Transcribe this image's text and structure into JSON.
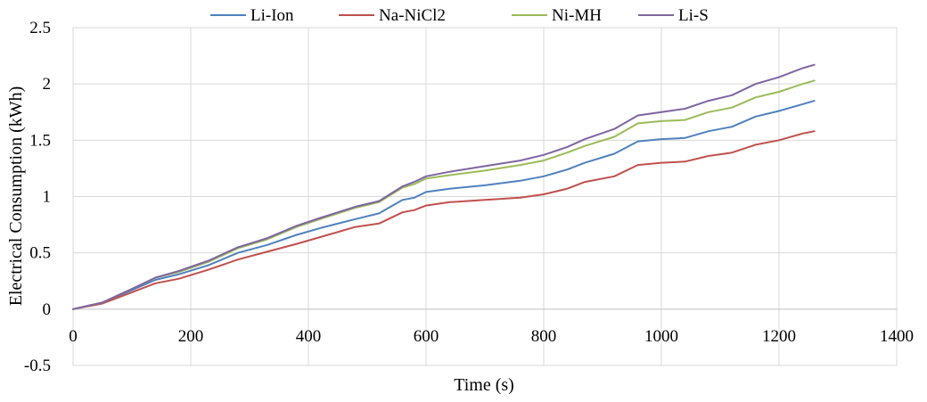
{
  "chart_data": {
    "type": "line",
    "title": "",
    "xlabel": "Time (s)",
    "ylabel": "Electrical Consumption (kWh)",
    "xlim": [
      0,
      1400
    ],
    "ylim": [
      -0.5,
      2.5
    ],
    "x_ticks": [
      0,
      200,
      400,
      600,
      800,
      1000,
      1200,
      1400
    ],
    "y_ticks": [
      -0.5,
      0,
      0.5,
      1,
      1.5,
      2,
      2.5
    ],
    "x_tick_labels": [
      "0",
      "200",
      "400",
      "600",
      "800",
      "1000",
      "1200",
      "1400"
    ],
    "y_tick_labels": [
      "-0.5",
      "0",
      "0.5",
      "1",
      "1.5",
      "2",
      "2.5"
    ],
    "grid": "vertical and horizontal",
    "legend_position": "top",
    "series": [
      {
        "name": "Li-Ion",
        "color": "#4F81BD",
        "points": [
          [
            0,
            0
          ],
          [
            50,
            0.06
          ],
          [
            100,
            0.17
          ],
          [
            140,
            0.26
          ],
          [
            180,
            0.31
          ],
          [
            230,
            0.39
          ],
          [
            280,
            0.5
          ],
          [
            330,
            0.57
          ],
          [
            380,
            0.66
          ],
          [
            420,
            0.72
          ],
          [
            480,
            0.8
          ],
          [
            520,
            0.85
          ],
          [
            560,
            0.97
          ],
          [
            580,
            0.99
          ],
          [
            600,
            1.04
          ],
          [
            640,
            1.07
          ],
          [
            700,
            1.1
          ],
          [
            760,
            1.14
          ],
          [
            800,
            1.18
          ],
          [
            840,
            1.24
          ],
          [
            870,
            1.3
          ],
          [
            920,
            1.38
          ],
          [
            960,
            1.49
          ],
          [
            1000,
            1.51
          ],
          [
            1040,
            1.52
          ],
          [
            1080,
            1.58
          ],
          [
            1120,
            1.62
          ],
          [
            1160,
            1.71
          ],
          [
            1200,
            1.76
          ],
          [
            1240,
            1.82
          ],
          [
            1260,
            1.85
          ]
        ]
      },
      {
        "name": "Na-NiCl2",
        "color": "#C0504D",
        "points": [
          [
            0,
            0
          ],
          [
            50,
            0.05
          ],
          [
            100,
            0.15
          ],
          [
            140,
            0.23
          ],
          [
            180,
            0.27
          ],
          [
            230,
            0.35
          ],
          [
            280,
            0.44
          ],
          [
            330,
            0.51
          ],
          [
            380,
            0.58
          ],
          [
            420,
            0.64
          ],
          [
            480,
            0.73
          ],
          [
            520,
            0.76
          ],
          [
            560,
            0.86
          ],
          [
            580,
            0.88
          ],
          [
            600,
            0.92
          ],
          [
            640,
            0.95
          ],
          [
            700,
            0.97
          ],
          [
            760,
            0.99
          ],
          [
            800,
            1.02
          ],
          [
            840,
            1.07
          ],
          [
            870,
            1.13
          ],
          [
            920,
            1.18
          ],
          [
            960,
            1.28
          ],
          [
            1000,
            1.3
          ],
          [
            1040,
            1.31
          ],
          [
            1080,
            1.36
          ],
          [
            1120,
            1.39
          ],
          [
            1160,
            1.46
          ],
          [
            1200,
            1.5
          ],
          [
            1240,
            1.56
          ],
          [
            1260,
            1.58
          ]
        ]
      },
      {
        "name": "Ni-MH",
        "color": "#9BBB59",
        "points": [
          [
            0,
            0
          ],
          [
            50,
            0.06
          ],
          [
            100,
            0.18
          ],
          [
            140,
            0.28
          ],
          [
            180,
            0.33
          ],
          [
            230,
            0.42
          ],
          [
            280,
            0.54
          ],
          [
            330,
            0.62
          ],
          [
            380,
            0.73
          ],
          [
            420,
            0.8
          ],
          [
            480,
            0.9
          ],
          [
            520,
            0.95
          ],
          [
            560,
            1.08
          ],
          [
            580,
            1.11
          ],
          [
            600,
            1.16
          ],
          [
            640,
            1.19
          ],
          [
            700,
            1.23
          ],
          [
            760,
            1.28
          ],
          [
            800,
            1.32
          ],
          [
            840,
            1.39
          ],
          [
            870,
            1.45
          ],
          [
            920,
            1.53
          ],
          [
            960,
            1.65
          ],
          [
            1000,
            1.67
          ],
          [
            1040,
            1.68
          ],
          [
            1080,
            1.75
          ],
          [
            1120,
            1.79
          ],
          [
            1160,
            1.88
          ],
          [
            1200,
            1.93
          ],
          [
            1240,
            2.0
          ],
          [
            1260,
            2.03
          ]
        ]
      },
      {
        "name": "Li-S",
        "color": "#8064A2",
        "points": [
          [
            0,
            0
          ],
          [
            50,
            0.06
          ],
          [
            100,
            0.18
          ],
          [
            140,
            0.28
          ],
          [
            180,
            0.34
          ],
          [
            230,
            0.43
          ],
          [
            280,
            0.55
          ],
          [
            330,
            0.63
          ],
          [
            380,
            0.74
          ],
          [
            420,
            0.81
          ],
          [
            480,
            0.91
          ],
          [
            520,
            0.96
          ],
          [
            560,
            1.09
          ],
          [
            580,
            1.13
          ],
          [
            600,
            1.18
          ],
          [
            640,
            1.22
          ],
          [
            700,
            1.27
          ],
          [
            760,
            1.32
          ],
          [
            800,
            1.37
          ],
          [
            840,
            1.44
          ],
          [
            870,
            1.51
          ],
          [
            920,
            1.6
          ],
          [
            960,
            1.72
          ],
          [
            1000,
            1.75
          ],
          [
            1040,
            1.78
          ],
          [
            1080,
            1.85
          ],
          [
            1120,
            1.9
          ],
          [
            1160,
            2.0
          ],
          [
            1200,
            2.06
          ],
          [
            1240,
            2.14
          ],
          [
            1260,
            2.17
          ]
        ]
      }
    ]
  }
}
